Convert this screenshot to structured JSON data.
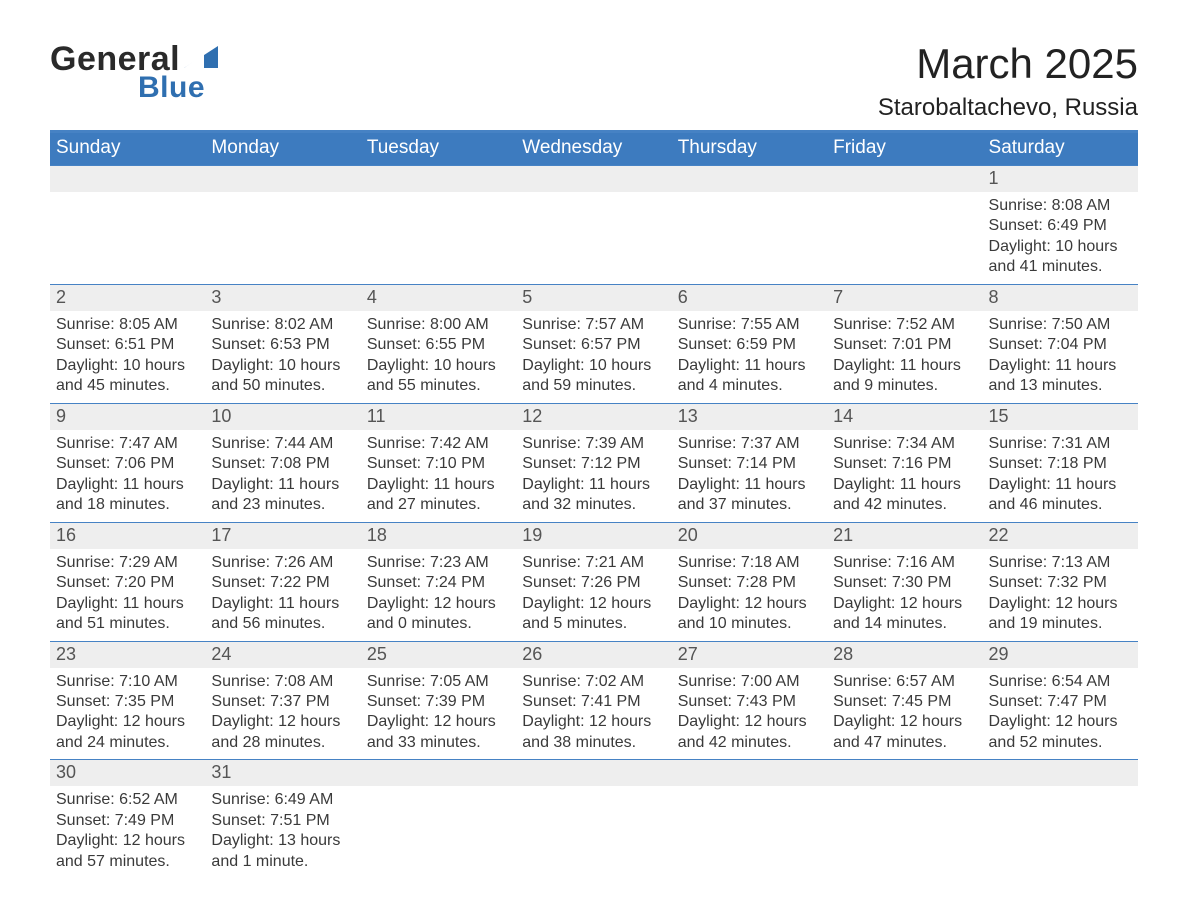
{
  "brand": {
    "word1": "General",
    "word2": "Blue",
    "word1_color": "#2a2a2a",
    "word2_color": "#2f6fb0",
    "logo_fill": "#2f6fb0"
  },
  "title": "March 2025",
  "location": "Starobaltachevo, Russia",
  "colors": {
    "header_bg": "#3d7bbf",
    "header_border": "#4682c4",
    "row_border": "#4682c4",
    "daynum_bg": "#eeeeee",
    "text": "#3a3a3a",
    "white": "#ffffff"
  },
  "typography": {
    "title_size": 42,
    "location_size": 24,
    "dow_size": 19,
    "daynum_size": 18,
    "body_size": 16
  },
  "days_of_week": [
    "Sunday",
    "Monday",
    "Tuesday",
    "Wednesday",
    "Thursday",
    "Friday",
    "Saturday"
  ],
  "weeks": [
    [
      {
        "num": "",
        "sunrise": "",
        "sunset": "",
        "daylight": ""
      },
      {
        "num": "",
        "sunrise": "",
        "sunset": "",
        "daylight": ""
      },
      {
        "num": "",
        "sunrise": "",
        "sunset": "",
        "daylight": ""
      },
      {
        "num": "",
        "sunrise": "",
        "sunset": "",
        "daylight": ""
      },
      {
        "num": "",
        "sunrise": "",
        "sunset": "",
        "daylight": ""
      },
      {
        "num": "",
        "sunrise": "",
        "sunset": "",
        "daylight": ""
      },
      {
        "num": "1",
        "sunrise": "Sunrise: 8:08 AM",
        "sunset": "Sunset: 6:49 PM",
        "daylight": "Daylight: 10 hours and 41 minutes."
      }
    ],
    [
      {
        "num": "2",
        "sunrise": "Sunrise: 8:05 AM",
        "sunset": "Sunset: 6:51 PM",
        "daylight": "Daylight: 10 hours and 45 minutes."
      },
      {
        "num": "3",
        "sunrise": "Sunrise: 8:02 AM",
        "sunset": "Sunset: 6:53 PM",
        "daylight": "Daylight: 10 hours and 50 minutes."
      },
      {
        "num": "4",
        "sunrise": "Sunrise: 8:00 AM",
        "sunset": "Sunset: 6:55 PM",
        "daylight": "Daylight: 10 hours and 55 minutes."
      },
      {
        "num": "5",
        "sunrise": "Sunrise: 7:57 AM",
        "sunset": "Sunset: 6:57 PM",
        "daylight": "Daylight: 10 hours and 59 minutes."
      },
      {
        "num": "6",
        "sunrise": "Sunrise: 7:55 AM",
        "sunset": "Sunset: 6:59 PM",
        "daylight": "Daylight: 11 hours and 4 minutes."
      },
      {
        "num": "7",
        "sunrise": "Sunrise: 7:52 AM",
        "sunset": "Sunset: 7:01 PM",
        "daylight": "Daylight: 11 hours and 9 minutes."
      },
      {
        "num": "8",
        "sunrise": "Sunrise: 7:50 AM",
        "sunset": "Sunset: 7:04 PM",
        "daylight": "Daylight: 11 hours and 13 minutes."
      }
    ],
    [
      {
        "num": "9",
        "sunrise": "Sunrise: 7:47 AM",
        "sunset": "Sunset: 7:06 PM",
        "daylight": "Daylight: 11 hours and 18 minutes."
      },
      {
        "num": "10",
        "sunrise": "Sunrise: 7:44 AM",
        "sunset": "Sunset: 7:08 PM",
        "daylight": "Daylight: 11 hours and 23 minutes."
      },
      {
        "num": "11",
        "sunrise": "Sunrise: 7:42 AM",
        "sunset": "Sunset: 7:10 PM",
        "daylight": "Daylight: 11 hours and 27 minutes."
      },
      {
        "num": "12",
        "sunrise": "Sunrise: 7:39 AM",
        "sunset": "Sunset: 7:12 PM",
        "daylight": "Daylight: 11 hours and 32 minutes."
      },
      {
        "num": "13",
        "sunrise": "Sunrise: 7:37 AM",
        "sunset": "Sunset: 7:14 PM",
        "daylight": "Daylight: 11 hours and 37 minutes."
      },
      {
        "num": "14",
        "sunrise": "Sunrise: 7:34 AM",
        "sunset": "Sunset: 7:16 PM",
        "daylight": "Daylight: 11 hours and 42 minutes."
      },
      {
        "num": "15",
        "sunrise": "Sunrise: 7:31 AM",
        "sunset": "Sunset: 7:18 PM",
        "daylight": "Daylight: 11 hours and 46 minutes."
      }
    ],
    [
      {
        "num": "16",
        "sunrise": "Sunrise: 7:29 AM",
        "sunset": "Sunset: 7:20 PM",
        "daylight": "Daylight: 11 hours and 51 minutes."
      },
      {
        "num": "17",
        "sunrise": "Sunrise: 7:26 AM",
        "sunset": "Sunset: 7:22 PM",
        "daylight": "Daylight: 11 hours and 56 minutes."
      },
      {
        "num": "18",
        "sunrise": "Sunrise: 7:23 AM",
        "sunset": "Sunset: 7:24 PM",
        "daylight": "Daylight: 12 hours and 0 minutes."
      },
      {
        "num": "19",
        "sunrise": "Sunrise: 7:21 AM",
        "sunset": "Sunset: 7:26 PM",
        "daylight": "Daylight: 12 hours and 5 minutes."
      },
      {
        "num": "20",
        "sunrise": "Sunrise: 7:18 AM",
        "sunset": "Sunset: 7:28 PM",
        "daylight": "Daylight: 12 hours and 10 minutes."
      },
      {
        "num": "21",
        "sunrise": "Sunrise: 7:16 AM",
        "sunset": "Sunset: 7:30 PM",
        "daylight": "Daylight: 12 hours and 14 minutes."
      },
      {
        "num": "22",
        "sunrise": "Sunrise: 7:13 AM",
        "sunset": "Sunset: 7:32 PM",
        "daylight": "Daylight: 12 hours and 19 minutes."
      }
    ],
    [
      {
        "num": "23",
        "sunrise": "Sunrise: 7:10 AM",
        "sunset": "Sunset: 7:35 PM",
        "daylight": "Daylight: 12 hours and 24 minutes."
      },
      {
        "num": "24",
        "sunrise": "Sunrise: 7:08 AM",
        "sunset": "Sunset: 7:37 PM",
        "daylight": "Daylight: 12 hours and 28 minutes."
      },
      {
        "num": "25",
        "sunrise": "Sunrise: 7:05 AM",
        "sunset": "Sunset: 7:39 PM",
        "daylight": "Daylight: 12 hours and 33 minutes."
      },
      {
        "num": "26",
        "sunrise": "Sunrise: 7:02 AM",
        "sunset": "Sunset: 7:41 PM",
        "daylight": "Daylight: 12 hours and 38 minutes."
      },
      {
        "num": "27",
        "sunrise": "Sunrise: 7:00 AM",
        "sunset": "Sunset: 7:43 PM",
        "daylight": "Daylight: 12 hours and 42 minutes."
      },
      {
        "num": "28",
        "sunrise": "Sunrise: 6:57 AM",
        "sunset": "Sunset: 7:45 PM",
        "daylight": "Daylight: 12 hours and 47 minutes."
      },
      {
        "num": "29",
        "sunrise": "Sunrise: 6:54 AM",
        "sunset": "Sunset: 7:47 PM",
        "daylight": "Daylight: 12 hours and 52 minutes."
      }
    ],
    [
      {
        "num": "30",
        "sunrise": "Sunrise: 6:52 AM",
        "sunset": "Sunset: 7:49 PM",
        "daylight": "Daylight: 12 hours and 57 minutes."
      },
      {
        "num": "31",
        "sunrise": "Sunrise: 6:49 AM",
        "sunset": "Sunset: 7:51 PM",
        "daylight": "Daylight: 13 hours and 1 minute."
      },
      {
        "num": "",
        "sunrise": "",
        "sunset": "",
        "daylight": ""
      },
      {
        "num": "",
        "sunrise": "",
        "sunset": "",
        "daylight": ""
      },
      {
        "num": "",
        "sunrise": "",
        "sunset": "",
        "daylight": ""
      },
      {
        "num": "",
        "sunrise": "",
        "sunset": "",
        "daylight": ""
      },
      {
        "num": "",
        "sunrise": "",
        "sunset": "",
        "daylight": ""
      }
    ]
  ]
}
